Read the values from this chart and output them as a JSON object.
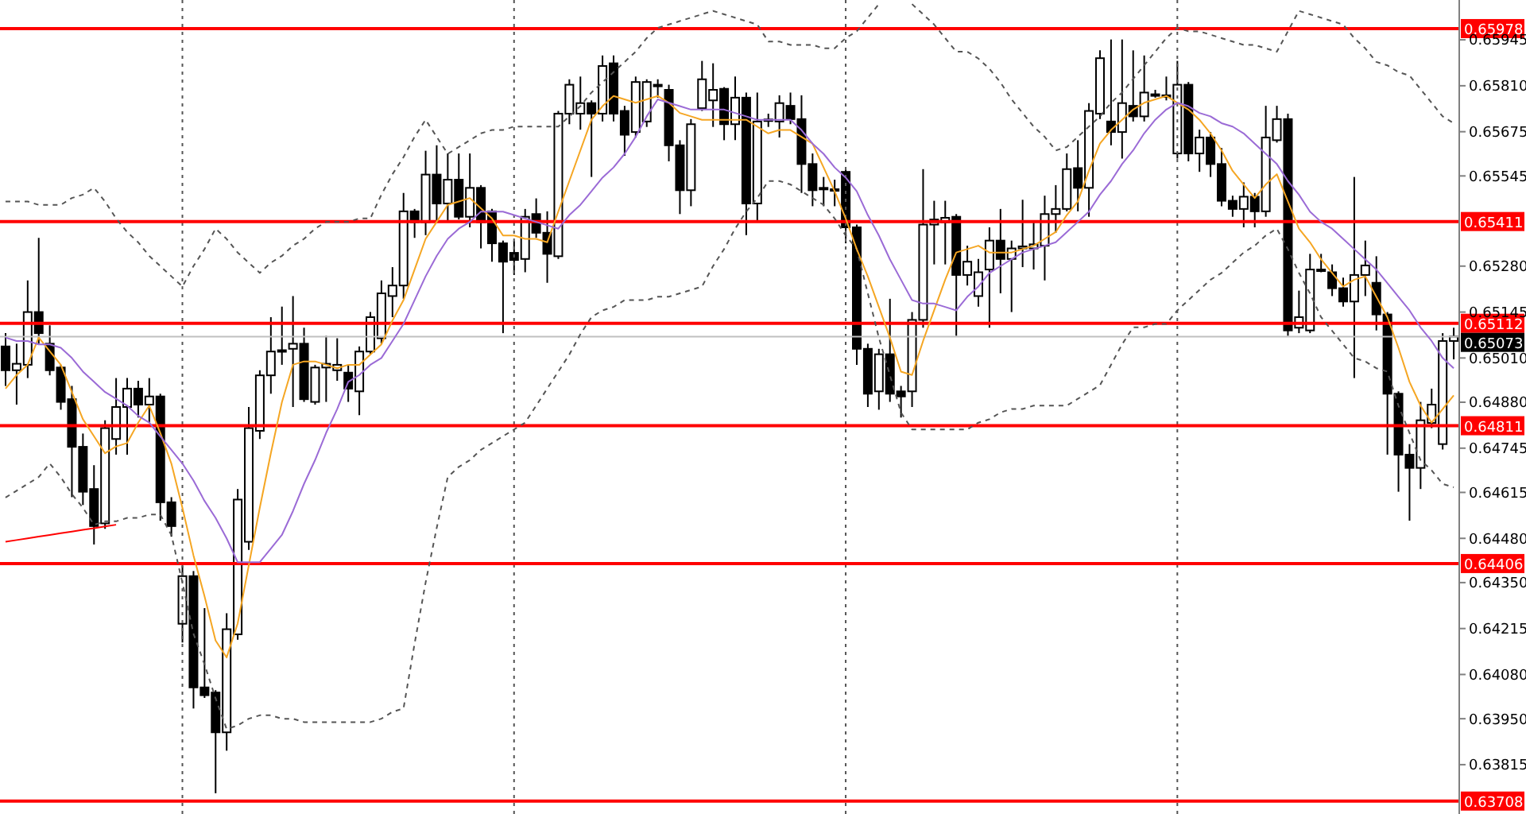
{
  "chart_data": {
    "type": "candlestick",
    "color": "#000000",
    "tick_labels": "y",
    "ylim": [
      0.6367,
      0.66062
    ],
    "yticks": [
      {
        "value": 0.63815,
        "label": "0.63815"
      },
      {
        "value": 0.6395,
        "label": "0.63950"
      },
      {
        "value": 0.6408,
        "label": "0.64080"
      },
      {
        "value": 0.64215,
        "label": "0.64215"
      },
      {
        "value": 0.6435,
        "label": "0.64350"
      },
      {
        "value": 0.6448,
        "label": "0.64480"
      },
      {
        "value": 0.64615,
        "label": "0.64615"
      },
      {
        "value": 0.64745,
        "label": "0.64745"
      },
      {
        "value": 0.6488,
        "label": "0.64880"
      },
      {
        "value": 0.6501,
        "label": "0.65010"
      },
      {
        "value": 0.65145,
        "label": "0.65145"
      },
      {
        "value": 0.6528,
        "label": "0.65280"
      },
      {
        "value": 0.65545,
        "label": "0.65545"
      },
      {
        "value": 0.65675,
        "label": "0.65675"
      },
      {
        "value": 0.6581,
        "label": "0.65810"
      },
      {
        "value": 0.65945,
        "label": "0.65945"
      }
    ],
    "categories": [
      null,
      null,
      null,
      null,
      null,
      null,
      null,
      null,
      null,
      null,
      null,
      null,
      null,
      null,
      null,
      null,
      null,
      null,
      null,
      null,
      null,
      null,
      null,
      null,
      null,
      null,
      null,
      null,
      null,
      null,
      null,
      null,
      null,
      null,
      null,
      null,
      null,
      null,
      null,
      null,
      null,
      null,
      null,
      null,
      null,
      null,
      null,
      null,
      null,
      null,
      null,
      null,
      null,
      null,
      null,
      null,
      null,
      null,
      null,
      null,
      null,
      null,
      null,
      null,
      null,
      null,
      null,
      null,
      null,
      null,
      null,
      null,
      null,
      null,
      null,
      null,
      null,
      null,
      null,
      null,
      null,
      null,
      null,
      null,
      null,
      null,
      null,
      null,
      null,
      null,
      null,
      null,
      null,
      null,
      null,
      null,
      null,
      null,
      null,
      null,
      null,
      null,
      null,
      null,
      null,
      null,
      null,
      null,
      null,
      null,
      null,
      null,
      null,
      null,
      null,
      null,
      null,
      null,
      null,
      null,
      null,
      null,
      null,
      null,
      null,
      null,
      null,
      null,
      null,
      null,
      null,
      null
    ],
    "ohlc": [
      [
        0.65044,
        0.65083,
        0.64928,
        0.64974
      ],
      [
        0.64974,
        0.65052,
        0.64873,
        0.64993
      ],
      [
        0.6499,
        0.65238,
        0.64951,
        0.65145
      ],
      [
        0.65145,
        0.65363,
        0.65052,
        0.65083
      ],
      [
        0.65052,
        0.65106,
        0.64959,
        0.64974
      ],
      [
        0.64982,
        0.6499,
        0.64858,
        0.64881
      ],
      [
        0.64889,
        0.64928,
        0.64601,
        0.64749
      ],
      [
        0.64749,
        0.64788,
        0.64578,
        0.64617
      ],
      [
        0.64625,
        0.64695,
        0.64462,
        0.64516
      ],
      [
        0.64524,
        0.64827,
        0.64508,
        0.64804
      ],
      [
        0.64772,
        0.64951,
        0.64726,
        0.64866
      ],
      [
        0.64866,
        0.64951,
        0.64726,
        0.6492
      ],
      [
        0.6492,
        0.64943,
        0.64835,
        0.64873
      ],
      [
        0.64873,
        0.64951,
        0.64819,
        0.64897
      ],
      [
        0.64897,
        0.64905,
        0.64532,
        0.64586
      ],
      [
        0.64586,
        0.64601,
        0.64485,
        0.64516
      ],
      [
        0.64229,
        0.644,
        0.64174,
        0.64369
      ],
      [
        0.64369,
        0.64384,
        0.6398,
        0.64042
      ],
      [
        0.64042,
        0.64275,
        0.64011,
        0.64019
      ],
      [
        0.64027,
        0.64034,
        0.63731,
        0.6391
      ],
      [
        0.6391,
        0.6426,
        0.63856,
        0.64213
      ],
      [
        0.64198,
        0.64625,
        0.64182,
        0.64594
      ],
      [
        0.6447,
        0.64866,
        0.64446,
        0.64804
      ],
      [
        0.64796,
        0.64974,
        0.64772,
        0.64959
      ],
      [
        0.64959,
        0.6513,
        0.64905,
        0.65029
      ],
      [
        0.65033,
        0.65161,
        0.6499,
        0.65029
      ],
      [
        0.65037,
        0.65192,
        0.64866,
        0.65052
      ],
      [
        0.65052,
        0.65099,
        0.64881,
        0.64889
      ],
      [
        0.64881,
        0.6499,
        0.64873,
        0.64982
      ],
      [
        0.64982,
        0.65075,
        0.64881,
        0.64993
      ],
      [
        0.64974,
        0.65068,
        0.64943,
        0.6499
      ],
      [
        0.64967,
        0.6499,
        0.64881,
        0.6492
      ],
      [
        0.64912,
        0.65044,
        0.64842,
        0.65029
      ],
      [
        0.65029,
        0.65145,
        0.65021,
        0.6513
      ],
      [
        0.65068,
        0.65238,
        0.65052,
        0.652
      ],
      [
        0.65192,
        0.65277,
        0.6513,
        0.65223
      ],
      [
        0.65223,
        0.65495,
        0.65184,
        0.65441
      ],
      [
        0.65441,
        0.65448,
        0.65363,
        0.65409
      ],
      [
        0.65409,
        0.65619,
        0.65371,
        0.65549
      ],
      [
        0.65549,
        0.65635,
        0.65409,
        0.65464
      ],
      [
        0.65464,
        0.65611,
        0.65409,
        0.65534
      ],
      [
        0.65534,
        0.65611,
        0.65417,
        0.65425
      ],
      [
        0.65425,
        0.65611,
        0.65394,
        0.6551
      ],
      [
        0.6551,
        0.65518,
        0.65332,
        0.65409
      ],
      [
        0.65441,
        0.65448,
        0.65293,
        0.65347
      ],
      [
        0.65347,
        0.65355,
        0.65083,
        0.65293
      ],
      [
        0.65319,
        0.65355,
        0.65254,
        0.65298
      ],
      [
        0.65301,
        0.65448,
        0.65262,
        0.65425
      ],
      [
        0.65433,
        0.65479,
        0.65363,
        0.65378
      ],
      [
        0.65378,
        0.65441,
        0.65231,
        0.65316
      ],
      [
        0.65309,
        0.65736,
        0.65301,
        0.65728
      ],
      [
        0.65728,
        0.65829,
        0.65697,
        0.65813
      ],
      [
        0.65728,
        0.65837,
        0.65681,
        0.65759
      ],
      [
        0.65759,
        0.65767,
        0.65542,
        0.65728
      ],
      [
        0.65728,
        0.65899,
        0.65705,
        0.65868
      ],
      [
        0.65876,
        0.65899,
        0.65705,
        0.65728
      ],
      [
        0.65736,
        0.65751,
        0.65604,
        0.65666
      ],
      [
        0.65674,
        0.65837,
        0.65658,
        0.65821
      ],
      [
        0.65705,
        0.65829,
        0.65689,
        0.65821
      ],
      [
        0.65813,
        0.65829,
        0.65775,
        0.6581
      ],
      [
        0.65798,
        0.65813,
        0.65588,
        0.65635
      ],
      [
        0.65635,
        0.6565,
        0.65433,
        0.65503
      ],
      [
        0.65503,
        0.65712,
        0.65456,
        0.65697
      ],
      [
        0.65744,
        0.65883,
        0.65736,
        0.65829
      ],
      [
        0.65767,
        0.65876,
        0.65689,
        0.65798
      ],
      [
        0.65801,
        0.65806,
        0.6565,
        0.65697
      ],
      [
        0.65697,
        0.65837,
        0.6565,
        0.65775
      ],
      [
        0.65775,
        0.6579,
        0.65371,
        0.65464
      ],
      [
        0.65464,
        0.6579,
        0.65409,
        0.65705
      ],
      [
        0.65708,
        0.65728,
        0.65689,
        0.65711
      ],
      [
        0.65705,
        0.65782,
        0.65658,
        0.65759
      ],
      [
        0.65751,
        0.6579,
        0.65697,
        0.65712
      ],
      [
        0.65712,
        0.65782,
        0.65495,
        0.6558
      ],
      [
        0.6558,
        0.65611,
        0.65456,
        0.65503
      ],
      [
        0.6551,
        0.65542,
        0.65456,
        0.65506
      ],
      [
        0.65506,
        0.65534,
        0.65456,
        0.65503
      ],
      [
        0.65557,
        0.65565,
        0.65347,
        0.65394
      ],
      [
        0.65394,
        0.65402,
        0.6499,
        0.65037
      ],
      [
        0.65037,
        0.65052,
        0.64866,
        0.64905
      ],
      [
        0.64912,
        0.65037,
        0.64858,
        0.65021
      ],
      [
        0.65021,
        0.65184,
        0.64881,
        0.64905
      ],
      [
        0.64912,
        0.64928,
        0.64835,
        0.64897
      ],
      [
        0.64912,
        0.65145,
        0.64866,
        0.65122
      ],
      [
        0.65122,
        0.65565,
        0.65099,
        0.65402
      ],
      [
        0.65402,
        0.65472,
        0.65285,
        0.65417
      ],
      [
        0.65409,
        0.65472,
        0.65285,
        0.65422
      ],
      [
        0.65425,
        0.65433,
        0.65075,
        0.65254
      ],
      [
        0.65254,
        0.6534,
        0.65223,
        0.65293
      ],
      [
        0.65192,
        0.65301,
        0.65161,
        0.65262
      ],
      [
        0.6527,
        0.65394,
        0.65099,
        0.65355
      ],
      [
        0.65355,
        0.65448,
        0.652,
        0.65301
      ],
      [
        0.65301,
        0.65355,
        0.65145,
        0.65332
      ],
      [
        0.65332,
        0.65475,
        0.65277,
        0.65338
      ],
      [
        0.65332,
        0.65409,
        0.6527,
        0.65344
      ],
      [
        0.6534,
        0.65487,
        0.65238,
        0.65433
      ],
      [
        0.65433,
        0.65518,
        0.65378,
        0.65448
      ],
      [
        0.65448,
        0.65611,
        0.65441,
        0.65565
      ],
      [
        0.65568,
        0.6565,
        0.65441,
        0.6551
      ],
      [
        0.6551,
        0.65759,
        0.65425,
        0.65736
      ],
      [
        0.65728,
        0.65914,
        0.65712,
        0.65891
      ],
      [
        0.65705,
        0.65946,
        0.65635,
        0.65674
      ],
      [
        0.65674,
        0.65946,
        0.65596,
        0.65759
      ],
      [
        0.65751,
        0.65914,
        0.65705,
        0.6572
      ],
      [
        0.6572,
        0.65899,
        0.65705,
        0.6579
      ],
      [
        0.65785,
        0.65798,
        0.65775,
        0.65782
      ],
      [
        0.65782,
        0.65837,
        0.65767,
        0.65779
      ],
      [
        0.65611,
        0.65883,
        0.65596,
        0.65813
      ],
      [
        0.65813,
        0.65821,
        0.65588,
        0.65611
      ],
      [
        0.65611,
        0.65681,
        0.65557,
        0.65658
      ],
      [
        0.65658,
        0.65674,
        0.65542,
        0.6558
      ],
      [
        0.6558,
        0.65627,
        0.65456,
        0.65472
      ],
      [
        0.65472,
        0.65487,
        0.65425,
        0.65448
      ],
      [
        0.65448,
        0.65526,
        0.65394,
        0.65484
      ],
      [
        0.65484,
        0.65495,
        0.65394,
        0.65441
      ],
      [
        0.65441,
        0.65751,
        0.65425,
        0.65658
      ],
      [
        0.6565,
        0.65751,
        0.65643,
        0.65712
      ],
      [
        0.65712,
        0.65728,
        0.65075,
        0.65091
      ],
      [
        0.65099,
        0.65208,
        0.65083,
        0.6513
      ],
      [
        0.65091,
        0.65316,
        0.65083,
        0.6527
      ],
      [
        0.6527,
        0.65316,
        0.65262,
        0.65267
      ],
      [
        0.65262,
        0.65285,
        0.65192,
        0.65215
      ],
      [
        0.65215,
        0.65246,
        0.65161,
        0.65176
      ],
      [
        0.65176,
        0.65542,
        0.64951,
        0.65254
      ],
      [
        0.65254,
        0.65355,
        0.65192,
        0.65282
      ],
      [
        0.65231,
        0.65309,
        0.65091,
        0.65138
      ],
      [
        0.65138,
        0.65145,
        0.64726,
        0.64905
      ],
      [
        0.64905,
        0.64912,
        0.64617,
        0.64726
      ],
      [
        0.64726,
        0.64757,
        0.64532,
        0.64687
      ],
      [
        0.64687,
        0.64881,
        0.64625,
        0.64827
      ],
      [
        0.64819,
        0.6492,
        0.64804,
        0.64873
      ],
      [
        0.64757,
        0.65083,
        0.64741,
        0.6506
      ],
      [
        0.6506,
        0.65099,
        0.65006,
        0.65073
      ]
    ],
    "series": [
      {
        "type": "line",
        "color": "#555555",
        "line_style": "dashed",
        "values": [
          0.6547,
          0.6547,
          0.6547,
          0.6546,
          0.6546,
          0.6546,
          0.6548,
          0.6549,
          0.6551,
          0.6547,
          0.6542,
          0.6538,
          0.6535,
          0.6531,
          0.6528,
          0.6525,
          0.6522,
          0.6528,
          0.6533,
          0.6539,
          0.6536,
          0.6532,
          0.6529,
          0.6526,
          0.6529,
          0.6531,
          0.6534,
          0.6536,
          0.6539,
          0.6541,
          0.6541,
          0.6541,
          0.6542,
          0.6542,
          0.6549,
          0.6555,
          0.656,
          0.6566,
          0.6571,
          0.6566,
          0.6561,
          0.6563,
          0.6565,
          0.6567,
          0.6568,
          0.6568,
          0.6569,
          0.6569,
          0.6569,
          0.6569,
          0.6569,
          0.6572,
          0.6575,
          0.6579,
          0.6582,
          0.6585,
          0.6588,
          0.6591,
          0.6595,
          0.6598,
          0.6599,
          0.66,
          0.6601,
          0.6602,
          0.6603,
          0.6602,
          0.6601,
          0.66,
          0.6599,
          0.6594,
          0.6594,
          0.6593,
          0.6593,
          0.6593,
          0.6592,
          0.6592,
          0.6595,
          0.6597,
          0.6601,
          0.6605,
          null,
          null,
          0.6605,
          0.6602,
          0.6599,
          0.6595,
          0.6591,
          0.6591,
          0.6589,
          0.6586,
          0.6582,
          0.6577,
          0.6573,
          0.6569,
          0.6566,
          0.6562,
          0.6563,
          0.6566,
          0.6569,
          0.6572,
          0.6576,
          0.6579,
          0.6583,
          0.6587,
          0.6591,
          0.6595,
          0.6598,
          0.6597,
          0.6597,
          0.6596,
          0.6595,
          0.6594,
          0.6593,
          0.6593,
          0.6592,
          0.6591,
          0.6597,
          0.6603,
          0.6602,
          0.6601,
          0.66,
          0.6599,
          0.6595,
          0.6592,
          0.6588,
          0.6587,
          0.6585,
          0.6584,
          0.658,
          0.6576,
          0.6572,
          0.657
        ]
      },
      {
        "type": "line",
        "color": "#555555",
        "line_style": "dashed",
        "values": [
          0.646,
          0.6462,
          0.6464,
          0.6466,
          0.647,
          0.6466,
          0.6461,
          0.6457,
          0.6452,
          0.6453,
          0.6453,
          0.6454,
          0.6454,
          0.6455,
          0.6455,
          0.6449,
          0.6435,
          0.642,
          0.6411,
          0.6401,
          0.6392,
          0.6393,
          0.6395,
          0.6396,
          0.6396,
          0.6395,
          0.6395,
          0.6394,
          0.6394,
          0.6394,
          0.6394,
          0.6394,
          0.6394,
          0.6394,
          0.6395,
          0.6397,
          0.6398,
          0.6417,
          0.6435,
          0.6451,
          0.6466,
          0.6469,
          0.6471,
          0.6474,
          0.6476,
          0.6478,
          0.648,
          0.6482,
          0.6487,
          0.6492,
          0.6497,
          0.6502,
          0.6508,
          0.6513,
          0.6515,
          0.6516,
          0.6518,
          0.6518,
          0.6518,
          0.6519,
          0.6519,
          0.652,
          0.6521,
          0.6522,
          0.6528,
          0.6533,
          0.6539,
          0.6544,
          0.6548,
          0.6553,
          0.6553,
          0.6552,
          0.655,
          0.6548,
          0.6546,
          0.6542,
          0.6537,
          0.6533,
          0.652,
          0.6507,
          0.6496,
          0.6485,
          0.648,
          0.648,
          0.648,
          0.648,
          0.648,
          0.648,
          0.6482,
          0.6483,
          0.6485,
          0.6486,
          0.6486,
          0.6487,
          0.6487,
          0.6487,
          0.6487,
          0.6489,
          0.6491,
          0.6493,
          0.6499,
          0.6505,
          0.651,
          0.651,
          0.6511,
          0.6511,
          0.6515,
          0.6518,
          0.6521,
          0.6524,
          0.6526,
          0.6529,
          0.6532,
          0.6534,
          0.6537,
          0.6539,
          0.6533,
          0.6526,
          0.652,
          0.6513,
          0.6509,
          0.6505,
          0.6501,
          0.65,
          0.6498,
          0.6497,
          0.6487,
          0.6479,
          0.6471,
          0.6468,
          0.6464,
          0.6463
        ]
      },
      {
        "type": "line",
        "color": "#f5a623",
        "line_style": "solid",
        "values": [
          0.6492,
          0.6496,
          0.6499,
          0.6507,
          0.6503,
          0.6499,
          0.6491,
          0.6483,
          0.6478,
          0.6473,
          0.6475,
          0.6476,
          0.6482,
          0.6487,
          0.6479,
          0.647,
          0.6457,
          0.6443,
          0.6431,
          0.6418,
          0.6413,
          0.6423,
          0.644,
          0.6457,
          0.6473,
          0.6488,
          0.6499,
          0.65,
          0.65,
          0.6499,
          0.6498,
          0.6499,
          0.6499,
          0.6502,
          0.6505,
          0.6512,
          0.6518,
          0.6527,
          0.6536,
          0.6541,
          0.6546,
          0.6547,
          0.6548,
          0.6545,
          0.6542,
          0.6537,
          0.6537,
          0.6536,
          0.6536,
          0.6535,
          0.6544,
          0.6553,
          0.6562,
          0.6571,
          0.6575,
          0.6578,
          0.6577,
          0.6576,
          0.6577,
          0.6578,
          0.6576,
          0.6573,
          0.6572,
          0.6571,
          0.6571,
          0.6571,
          0.6571,
          0.6571,
          0.6569,
          0.6567,
          0.6568,
          0.6568,
          0.6566,
          0.6564,
          0.6557,
          0.655,
          0.6542,
          0.6533,
          0.6525,
          0.6516,
          0.6507,
          0.6497,
          0.6496,
          0.6506,
          0.6515,
          0.6524,
          0.6532,
          0.6533,
          0.6534,
          0.6532,
          0.6532,
          0.6532,
          0.6533,
          0.6534,
          0.6536,
          0.6538,
          0.6543,
          0.6547,
          0.6556,
          0.6564,
          0.6568,
          0.6571,
          0.6574,
          0.6576,
          0.6577,
          0.6578,
          0.6576,
          0.6574,
          0.6571,
          0.6567,
          0.6562,
          0.6556,
          0.6552,
          0.6548,
          0.6552,
          0.6555,
          0.6547,
          0.6539,
          0.6535,
          0.653,
          0.6526,
          0.6522,
          0.6524,
          0.6525,
          0.6519,
          0.6513,
          0.6504,
          0.6494,
          0.6487,
          0.6482,
          0.6486,
          0.649
        ]
      },
      {
        "type": "line",
        "color": "#9b6bd6",
        "line_style": "solid",
        "values": [
          0.6507,
          0.6506,
          0.6506,
          0.6505,
          0.6505,
          0.6504,
          0.6501,
          0.6497,
          0.6494,
          0.6491,
          0.6489,
          0.6487,
          0.6484,
          0.6482,
          0.6478,
          0.6474,
          0.647,
          0.6465,
          0.6459,
          0.6454,
          0.6448,
          0.6441,
          0.6441,
          0.6441,
          0.6445,
          0.6449,
          0.6456,
          0.6464,
          0.6471,
          0.6479,
          0.6486,
          0.6494,
          0.6496,
          0.6499,
          0.6501,
          0.6506,
          0.6511,
          0.6518,
          0.6525,
          0.6531,
          0.6536,
          0.6539,
          0.6541,
          0.6544,
          0.6544,
          0.6544,
          0.6543,
          0.6542,
          0.6541,
          0.654,
          0.6539,
          0.6543,
          0.6546,
          0.655,
          0.6554,
          0.6557,
          0.6561,
          0.6566,
          0.6572,
          0.6577,
          0.6576,
          0.6575,
          0.6574,
          0.6574,
          0.6574,
          0.6574,
          0.6573,
          0.6572,
          0.6571,
          0.6571,
          0.6571,
          0.6571,
          0.6568,
          0.6564,
          0.6561,
          0.6557,
          0.6554,
          0.655,
          0.6543,
          0.6537,
          0.653,
          0.6524,
          0.6518,
          0.6517,
          0.6517,
          0.6516,
          0.6515,
          0.6519,
          0.6522,
          0.6526,
          0.6528,
          0.653,
          0.6532,
          0.6533,
          0.6534,
          0.6535,
          0.6538,
          0.6541,
          0.6544,
          0.6549,
          0.6553,
          0.6558,
          0.6562,
          0.6567,
          0.6571,
          0.6574,
          0.6576,
          0.6575,
          0.6573,
          0.6572,
          0.657,
          0.6569,
          0.6567,
          0.6564,
          0.6561,
          0.6558,
          0.6553,
          0.6549,
          0.6544,
          0.6541,
          0.6539,
          0.6536,
          0.6533,
          0.653,
          0.6527,
          0.6523,
          0.6519,
          0.6515,
          0.651,
          0.6506,
          0.6501,
          0.6498
        ]
      },
      {
        "type": "line",
        "color": "#ff0000",
        "line_style": "solid",
        "values": [
          0.6447,
          0.64475,
          0.6448,
          0.64485,
          0.6449,
          0.64495,
          0.645,
          0.64505,
          0.6451,
          0.64515,
          0.6452,
          null,
          null,
          null,
          null,
          null,
          null,
          null,
          null,
          null,
          null,
          null,
          null,
          null,
          null,
          null,
          null,
          null,
          null,
          null,
          null,
          null,
          null,
          null,
          null,
          null,
          null,
          null,
          null,
          null,
          null,
          null,
          null,
          null,
          null,
          null,
          null,
          null,
          null,
          null,
          null,
          null,
          null,
          null,
          null,
          null,
          null,
          null,
          null,
          null,
          null,
          null,
          null,
          null,
          null,
          null,
          null,
          null,
          null,
          null,
          null,
          null,
          null,
          null,
          null,
          null,
          null,
          null,
          null,
          null,
          null,
          null,
          null,
          null,
          null,
          null,
          null,
          null,
          null,
          null,
          null,
          null,
          null,
          null,
          null,
          null,
          null,
          null,
          null,
          null,
          null,
          null,
          null,
          null,
          null,
          null,
          null,
          null,
          null,
          null,
          null,
          null,
          null,
          null,
          null,
          null,
          null,
          null,
          null,
          null,
          null,
          null,
          null,
          null,
          null,
          null,
          null,
          null,
          null,
          null,
          null,
          null
        ]
      }
    ],
    "ref_lines": [
      {
        "axis": "y",
        "value": 0.65978,
        "label": "0.65978",
        "color": "#ff0000"
      },
      {
        "axis": "y",
        "value": 0.65411,
        "label": "0.65411",
        "color": "#ff0000"
      },
      {
        "axis": "y",
        "value": 0.65112,
        "label": "0.65112",
        "color": "#ff0000"
      },
      {
        "axis": "y",
        "value": 0.65073,
        "label": "0.65073",
        "color": "#c0c0c0"
      },
      {
        "axis": "y",
        "value": 0.64811,
        "label": "0.64811",
        "color": "#ff0000"
      },
      {
        "axis": "y",
        "value": 0.64406,
        "label": "0.64406",
        "color": "#ff0000"
      },
      {
        "axis": "y",
        "value": 0.63708,
        "label": "0.63708",
        "color": "#ff0000"
      }
    ]
  }
}
